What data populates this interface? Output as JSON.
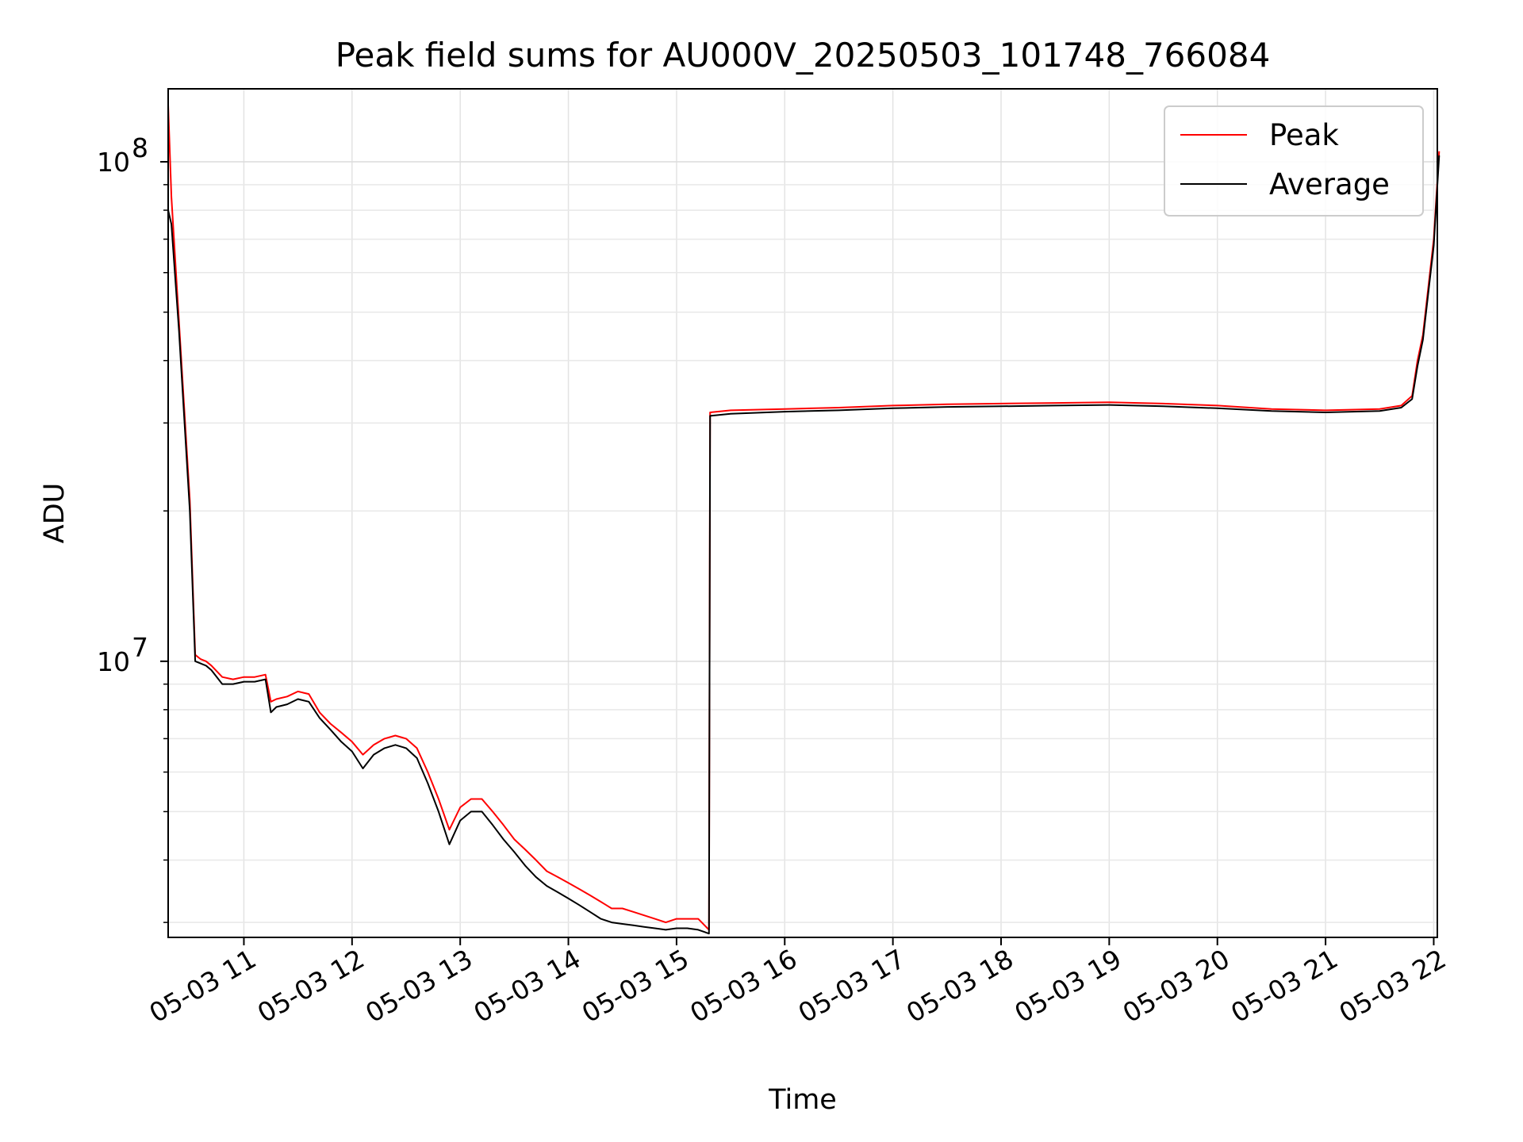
{
  "chart_data": {
    "type": "line",
    "title": "Peak field sums for AU000V_20250503_101748_766084",
    "xlabel": "Time",
    "ylabel": "ADU",
    "yscale": "log",
    "xlim": [
      "05-03 10:18",
      "05-03 22:02"
    ],
    "ylim": [
      2800000,
      140000000
    ],
    "x_ticks": [
      "05-03 11",
      "05-03 12",
      "05-03 13",
      "05-03 14",
      "05-03 15",
      "05-03 16",
      "05-03 17",
      "05-03 18",
      "05-03 19",
      "05-03 20",
      "05-03 21",
      "05-03 22"
    ],
    "y_ticks": [
      {
        "value": 10000000,
        "base": "10",
        "exp": "7"
      },
      {
        "value": 100000000,
        "base": "10",
        "exp": "8"
      }
    ],
    "grid": true,
    "legend_position": "top-right",
    "x_unit": "hours",
    "series": [
      {
        "name": "Peak",
        "color": "#ff0000",
        "x": [
          10.3,
          10.33,
          10.4,
          10.5,
          10.55,
          10.6,
          10.65,
          10.7,
          10.8,
          10.9,
          11.0,
          11.1,
          11.2,
          11.25,
          11.3,
          11.4,
          11.5,
          11.6,
          11.7,
          11.8,
          11.9,
          12.0,
          12.1,
          12.2,
          12.3,
          12.4,
          12.5,
          12.6,
          12.7,
          12.8,
          12.9,
          13.0,
          13.1,
          13.2,
          13.3,
          13.4,
          13.5,
          13.6,
          13.7,
          13.8,
          13.9,
          14.0,
          14.1,
          14.2,
          14.3,
          14.4,
          14.5,
          14.6,
          14.7,
          14.8,
          14.9,
          15.0,
          15.1,
          15.2,
          15.3,
          15.31,
          15.5,
          16.0,
          16.5,
          17.0,
          17.5,
          18.0,
          18.5,
          19.0,
          19.5,
          20.0,
          20.5,
          21.0,
          21.5,
          21.7,
          21.8,
          21.85,
          21.9,
          22.0,
          22.05
        ],
        "values": [
          130000000,
          85000000,
          48000000,
          21000000,
          10300000,
          10100000,
          10000000,
          9800000,
          9300000,
          9200000,
          9300000,
          9300000,
          9400000,
          8300000,
          8400000,
          8500000,
          8700000,
          8600000,
          7900000,
          7500000,
          7200000,
          6900000,
          6500000,
          6800000,
          7000000,
          7100000,
          7000000,
          6700000,
          6000000,
          5300000,
          4600000,
          5100000,
          5300000,
          5300000,
          5000000,
          4700000,
          4400000,
          4200000,
          4000000,
          3800000,
          3700000,
          3600000,
          3500000,
          3400000,
          3300000,
          3200000,
          3200000,
          3150000,
          3100000,
          3050000,
          3000000,
          3050000,
          3050000,
          3050000,
          2900000,
          31500000,
          31800000,
          32000000,
          32200000,
          32500000,
          32700000,
          32800000,
          32900000,
          33000000,
          32800000,
          32500000,
          32000000,
          31800000,
          32000000,
          32500000,
          34000000,
          40000000,
          45000000,
          70000000,
          105000000
        ]
      },
      {
        "name": "Average",
        "color": "#000000",
        "x": [
          10.3,
          10.33,
          10.4,
          10.5,
          10.55,
          10.6,
          10.65,
          10.7,
          10.8,
          10.9,
          11.0,
          11.1,
          11.2,
          11.25,
          11.3,
          11.4,
          11.5,
          11.6,
          11.7,
          11.8,
          11.9,
          12.0,
          12.1,
          12.2,
          12.3,
          12.4,
          12.5,
          12.6,
          12.7,
          12.8,
          12.9,
          13.0,
          13.1,
          13.2,
          13.3,
          13.4,
          13.5,
          13.6,
          13.7,
          13.8,
          13.9,
          14.0,
          14.1,
          14.2,
          14.3,
          14.4,
          14.5,
          14.6,
          14.7,
          14.8,
          14.9,
          15.0,
          15.1,
          15.2,
          15.3,
          15.31,
          15.5,
          16.0,
          16.5,
          17.0,
          17.5,
          18.0,
          18.5,
          19.0,
          19.5,
          20.0,
          20.5,
          21.0,
          21.5,
          21.7,
          21.8,
          21.85,
          21.9,
          22.0,
          22.05
        ],
        "values": [
          80000000,
          75000000,
          46000000,
          20000000,
          10000000,
          9900000,
          9800000,
          9600000,
          9000000,
          9000000,
          9100000,
          9100000,
          9200000,
          7900000,
          8100000,
          8200000,
          8400000,
          8300000,
          7700000,
          7300000,
          6900000,
          6600000,
          6100000,
          6500000,
          6700000,
          6800000,
          6700000,
          6400000,
          5700000,
          5000000,
          4300000,
          4800000,
          5000000,
          5000000,
          4700000,
          4400000,
          4150000,
          3900000,
          3700000,
          3550000,
          3450000,
          3350000,
          3250000,
          3150000,
          3050000,
          3000000,
          2980000,
          2960000,
          2940000,
          2920000,
          2900000,
          2920000,
          2920000,
          2900000,
          2850000,
          31000000,
          31300000,
          31600000,
          31800000,
          32100000,
          32300000,
          32400000,
          32500000,
          32600000,
          32400000,
          32100000,
          31700000,
          31500000,
          31700000,
          32200000,
          33500000,
          39000000,
          44000000,
          68000000,
          103000000
        ]
      }
    ]
  }
}
